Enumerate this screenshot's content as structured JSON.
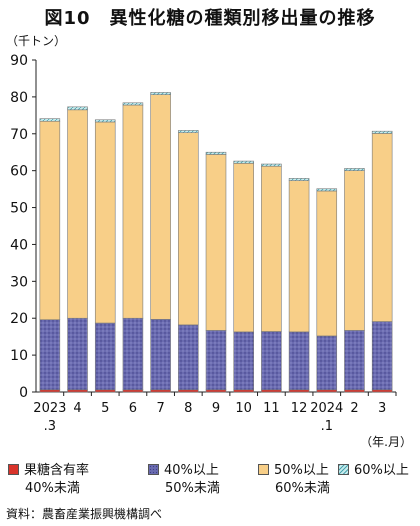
{
  "chart_data": {
    "type": "bar",
    "stacked": true,
    "title": "図10　異性化糖の種類別移出量の推移",
    "ylabel": "（千トン）",
    "xlabel": "（年.月）",
    "ylim": [
      0,
      90
    ],
    "yticks": [
      0,
      10,
      20,
      30,
      40,
      50,
      60,
      70,
      80,
      90
    ],
    "grid": false,
    "legend_position": "bottom",
    "categories": [
      [
        "2023",
        ".3"
      ],
      [
        "4"
      ],
      [
        "5"
      ],
      [
        "6"
      ],
      [
        "7"
      ],
      [
        "8"
      ],
      [
        "9"
      ],
      [
        "10"
      ],
      [
        "11"
      ],
      [
        "12"
      ],
      [
        "2024",
        ".1"
      ],
      [
        "2"
      ],
      [
        "3"
      ]
    ],
    "series": [
      {
        "name": "果糖含有率 40%未満",
        "line1": "果糖含有率",
        "line2": "40%未満",
        "color": "#d9342b",
        "pattern": "solid",
        "values": [
          0.6,
          0.6,
          0.6,
          0.6,
          0.6,
          0.6,
          0.6,
          0.6,
          0.6,
          0.6,
          0.6,
          0.6,
          0.6
        ]
      },
      {
        "name": "40%以上 50%未満",
        "line1": "40%以上",
        "line2": "50%未満",
        "color": "#6a6bb0",
        "pattern": "dots",
        "values": [
          19.0,
          19.4,
          18.1,
          19.4,
          19.1,
          17.6,
          16.1,
          15.7,
          15.8,
          15.7,
          14.6,
          16.1,
          18.5
        ]
      },
      {
        "name": "50%以上 60%未満",
        "line1": "50%以上",
        "line2": "60%未満",
        "color": "#f8cf88",
        "pattern": "solid",
        "values": [
          53.8,
          56.5,
          54.5,
          57.8,
          60.9,
          52.1,
          47.7,
          45.7,
          44.8,
          41.0,
          39.3,
          43.3,
          51.0
        ]
      },
      {
        "name": "60%以上",
        "line1": "60%以上",
        "line2": "",
        "color": "#9fd8dd",
        "pattern": "hatch",
        "values": [
          0.7,
          0.8,
          0.6,
          0.6,
          0.6,
          0.6,
          0.6,
          0.6,
          0.6,
          0.6,
          0.6,
          0.6,
          0.6
        ]
      }
    ]
  },
  "source": "資料：農畜産業振興機構調べ"
}
